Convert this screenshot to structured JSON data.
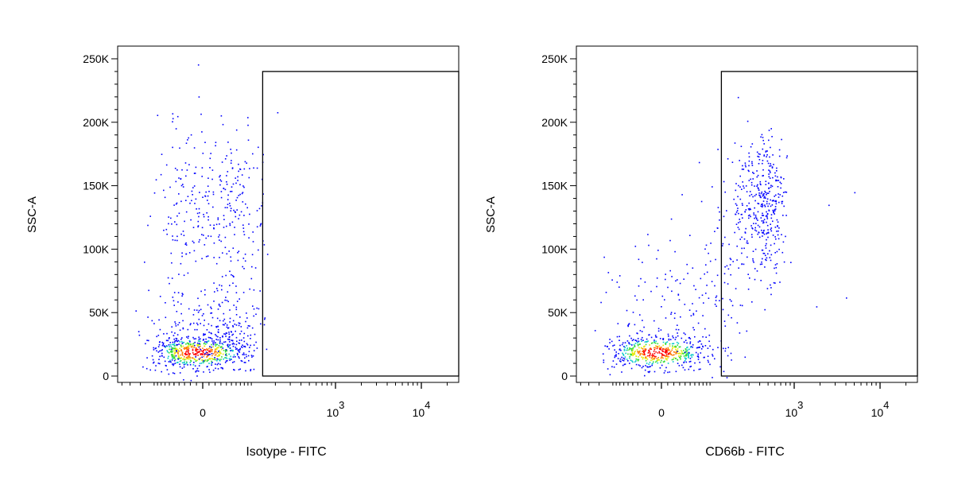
{
  "chart_data": [
    {
      "type": "scatter",
      "xlabel": "Isotype - FITC",
      "ylabel": "SSC-A",
      "y_ticks": [
        {
          "value": 250000,
          "label": "250K"
        },
        {
          "value": 200000,
          "label": "200K"
        },
        {
          "value": 150000,
          "label": "150K"
        },
        {
          "value": 100000,
          "label": "100K"
        },
        {
          "value": 50000,
          "label": "50K"
        },
        {
          "value": 0,
          "label": "0"
        }
      ],
      "ylim": [
        -5000,
        260000
      ],
      "x_scale": "biexponential",
      "x_ticks": [
        {
          "value": 0,
          "label": "0"
        },
        {
          "value": 1000,
          "base": "10",
          "exp": "3"
        },
        {
          "value": 10000,
          "base": "10",
          "exp": "4"
        }
      ],
      "gate": {
        "x_min": 140,
        "y_min": 0,
        "y_max": 240000
      },
      "clusters": [
        {
          "n": 520,
          "x_mean": -10,
          "x_sd": 45,
          "y_mean": 19000,
          "y_sd": 6500
        },
        {
          "n": 280,
          "x_mean": 20,
          "x_sd": 55,
          "y_mean": 35000,
          "y_sd": 16000
        },
        {
          "n": 330,
          "x_mean": 15,
          "x_sd": 55,
          "y_mean": 130000,
          "y_sd": 35000
        }
      ],
      "stray_points": [
        [
          210,
          208000
        ],
        [
          140,
          175000
        ],
        [
          -120,
          68000
        ]
      ]
    },
    {
      "type": "scatter",
      "xlabel": "CD66b - FITC",
      "ylabel": "SSC-A",
      "y_ticks": [
        {
          "value": 250000,
          "label": "250K"
        },
        {
          "value": 200000,
          "label": "200K"
        },
        {
          "value": 150000,
          "label": "150K"
        },
        {
          "value": 100000,
          "label": "100K"
        },
        {
          "value": 50000,
          "label": "50K"
        },
        {
          "value": 0,
          "label": "0"
        }
      ],
      "ylim": [
        -5000,
        260000
      ],
      "x_scale": "biexponential",
      "x_ticks": [
        {
          "value": 0,
          "label": "0"
        },
        {
          "value": 1000,
          "base": "10",
          "exp": "3"
        },
        {
          "value": 10000,
          "base": "10",
          "exp": "4"
        }
      ],
      "gate": {
        "x_min": 140,
        "y_min": 0,
        "y_max": 240000
      },
      "clusters": [
        {
          "n": 520,
          "x_mean": -10,
          "x_sd": 45,
          "y_mean": 19000,
          "y_sd": 6500
        },
        {
          "n": 180,
          "x_mean": 60,
          "x_sd": 90,
          "y_mean": 55000,
          "y_sd": 28000
        },
        {
          "n": 420,
          "x_mean": 420,
          "x_sd": 160,
          "y_mean": 135000,
          "y_sd": 28000
        }
      ],
      "stray_points": [
        [
          5000,
          145000
        ],
        [
          2500,
          135000
        ],
        [
          4000,
          62000
        ],
        [
          1800,
          55000
        ],
        [
          900,
          90000
        ]
      ]
    }
  ]
}
